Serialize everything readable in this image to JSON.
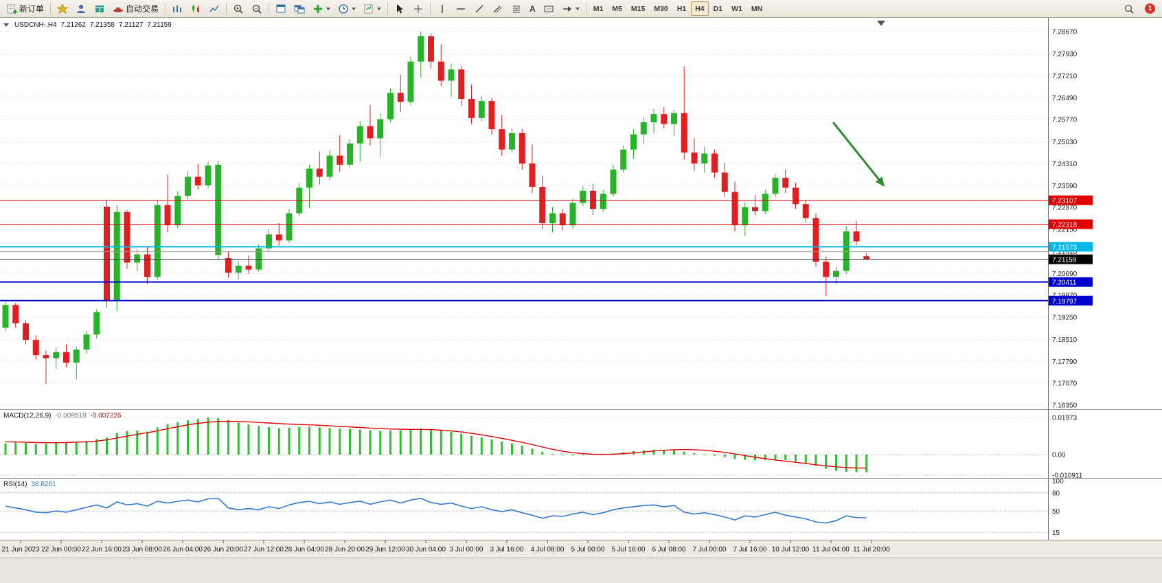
{
  "toolbar": {
    "new_order_label": "新订单",
    "autotrading_label": "自动交易",
    "text_tool_label": "A",
    "timeframes": [
      "M1",
      "M5",
      "M15",
      "M30",
      "H1",
      "H4",
      "D1",
      "W1",
      "MN"
    ],
    "active_timeframe": "H4",
    "notification_count": "1"
  },
  "chart": {
    "symbol_line": {
      "symbol": "USDCNH-,H4",
      "open": "7.21262",
      "high": "7.21358",
      "low": "7.21127",
      "close": "7.21159"
    }
  },
  "chart_data": {
    "type": "candlestick",
    "title": "USDCNH-,H4",
    "colors": {
      "up": "#28b428",
      "down": "#e02020"
    },
    "price_axis": {
      "labels": [
        "7.28670",
        "7.27930",
        "7.27210",
        "7.26490",
        "7.25770",
        "7.25030",
        "7.24310",
        "7.23590",
        "7.22870",
        "7.22150",
        "7.21410",
        "7.20690",
        "7.19970",
        "7.19250",
        "7.18510",
        "7.17790",
        "7.17070",
        "7.16350"
      ]
    },
    "time_labels": [
      "21 Jun 2023",
      "22 Jun 00:00",
      "22 Jun 16:00",
      "23 Jun 08:00",
      "26 Jun 04:00",
      "26 Jun 20:00",
      "27 Jun 12:00",
      "28 Jun 04:00",
      "28 Jun 20:00",
      "29 Jun 12:00",
      "30 Jun 04:00",
      "3 Jul 00:00",
      "3 Jul 16:00",
      "4 Jul 08:00",
      "5 Jul 00:00",
      "5 Jul 16:00",
      "6 Jul 08:00",
      "7 Jul 00:00",
      "7 Jul 16:00",
      "10 Jul 12:00",
      "11 Jul 04:00",
      "11 Jul 20:00"
    ],
    "candles": [
      [
        7.189,
        7.1975,
        7.188,
        7.1965
      ],
      [
        7.1965,
        7.1972,
        7.189,
        7.1905
      ],
      [
        7.1905,
        7.1915,
        7.1835,
        7.185
      ],
      [
        7.185,
        7.1865,
        7.1785,
        7.18
      ],
      [
        7.18,
        7.1815,
        7.1705,
        7.179
      ],
      [
        7.179,
        7.1825,
        7.1755,
        7.181
      ],
      [
        7.181,
        7.1835,
        7.176,
        7.1775
      ],
      [
        7.1775,
        7.1828,
        7.172,
        7.1818
      ],
      [
        7.1818,
        7.188,
        7.1805,
        7.1868
      ],
      [
        7.1868,
        7.195,
        7.1855,
        7.1942
      ],
      [
        7.229,
        7.2312,
        7.1958,
        7.1978
      ],
      [
        7.1978,
        7.2295,
        7.1945,
        7.2272
      ],
      [
        7.2272,
        7.2278,
        7.2085,
        7.2105
      ],
      [
        7.2105,
        7.215,
        7.2078,
        7.2132
      ],
      [
        7.2132,
        7.2158,
        7.2035,
        7.2058
      ],
      [
        7.2058,
        7.231,
        7.2048,
        7.2295
      ],
      [
        7.2295,
        7.2395,
        7.2205,
        7.2228
      ],
      [
        7.2228,
        7.234,
        7.2218,
        7.2325
      ],
      [
        7.2325,
        7.2405,
        7.2315,
        7.2388
      ],
      [
        7.2388,
        7.243,
        7.2345,
        7.236
      ],
      [
        7.236,
        7.2438,
        7.235,
        7.2425
      ],
      [
        7.213,
        7.244,
        7.2112,
        7.2428
      ],
      [
        7.212,
        7.2142,
        7.2055,
        7.2072
      ],
      [
        7.2072,
        7.2108,
        7.205,
        7.2095
      ],
      [
        7.2095,
        7.2128,
        7.2068,
        7.2082
      ],
      [
        7.2082,
        7.2165,
        7.2075,
        7.2152
      ],
      [
        7.2152,
        7.2215,
        7.2142,
        7.2198
      ],
      [
        7.2198,
        7.2235,
        7.2162,
        7.2178
      ],
      [
        7.2178,
        7.2282,
        7.2168,
        7.2268
      ],
      [
        7.2268,
        7.2368,
        7.2258,
        7.2352
      ],
      [
        7.2352,
        7.2428,
        7.2285,
        7.2415
      ],
      [
        7.2415,
        7.2472,
        7.2362,
        7.2388
      ],
      [
        7.2388,
        7.2475,
        7.2378,
        7.2458
      ],
      [
        7.2458,
        7.2525,
        7.2405,
        7.2428
      ],
      [
        7.2428,
        7.2512,
        7.2418,
        7.2498
      ],
      [
        7.2498,
        7.2572,
        7.2438,
        7.2555
      ],
      [
        7.2555,
        7.2625,
        7.2492,
        7.2515
      ],
      [
        7.2515,
        7.2598,
        7.2455,
        7.2578
      ],
      [
        7.2578,
        7.268,
        7.2568,
        7.2665
      ],
      [
        7.2665,
        7.2725,
        7.2602,
        7.2635
      ],
      [
        7.2635,
        7.2785,
        7.2625,
        7.2768
      ],
      [
        7.2768,
        7.2867,
        7.2715,
        7.2852
      ],
      [
        7.2852,
        7.2862,
        7.2745,
        7.2768
      ],
      [
        7.2768,
        7.2825,
        7.2688,
        7.2705
      ],
      [
        7.2705,
        7.2762,
        7.2652,
        7.2742
      ],
      [
        7.2742,
        7.2755,
        7.2622,
        7.2645
      ],
      [
        7.2645,
        7.2692,
        7.2562,
        7.2582
      ],
      [
        7.2582,
        7.2655,
        7.2572,
        7.2638
      ],
      [
        7.2638,
        7.2648,
        7.2528,
        7.2545
      ],
      [
        7.2545,
        7.2592,
        7.2458,
        7.2478
      ],
      [
        7.2478,
        7.2548,
        7.2468,
        7.2532
      ],
      [
        7.2532,
        7.2545,
        7.2412,
        7.2432
      ],
      [
        7.2432,
        7.2495,
        7.2335,
        7.2355
      ],
      [
        7.2355,
        7.2392,
        7.2215,
        7.2235
      ],
      [
        7.2235,
        7.2288,
        7.2205,
        7.2268
      ],
      [
        7.2268,
        7.2282,
        7.2212,
        7.2228
      ],
      [
        7.2228,
        7.2315,
        7.2218,
        7.2302
      ],
      [
        7.2302,
        7.2358,
        7.2292,
        7.2342
      ],
      [
        7.2342,
        7.2365,
        7.2262,
        7.2282
      ],
      [
        7.2282,
        7.2345,
        7.2272,
        7.2332
      ],
      [
        7.2332,
        7.2428,
        7.2322,
        7.2412
      ],
      [
        7.2412,
        7.2492,
        7.2402,
        7.2478
      ],
      [
        7.2478,
        7.2545,
        7.2448,
        7.2528
      ],
      [
        7.2528,
        7.2585,
        7.2498,
        7.2568
      ],
      [
        7.2568,
        7.2612,
        7.2532,
        7.2595
      ],
      [
        7.2595,
        7.2618,
        7.2548,
        7.2562
      ],
      [
        7.2562,
        7.2608,
        7.2522,
        7.2598
      ],
      [
        7.2598,
        7.2752,
        7.2445,
        7.2468
      ],
      [
        7.2468,
        7.2515,
        7.2408,
        7.2432
      ],
      [
        7.2432,
        7.2488,
        7.2402,
        7.2465
      ],
      [
        7.2465,
        7.2478,
        7.2385,
        7.2402
      ],
      [
        7.2402,
        7.2435,
        7.2322,
        7.2338
      ],
      [
        7.2338,
        7.2372,
        7.2208,
        7.2228
      ],
      [
        7.2228,
        7.2305,
        7.2192,
        7.2288
      ],
      [
        7.2288,
        7.2328,
        7.2262,
        7.2275
      ],
      [
        7.2275,
        7.2345,
        7.2265,
        7.2332
      ],
      [
        7.2332,
        7.2398,
        7.2322,
        7.2385
      ],
      [
        7.2385,
        7.2412,
        7.2335,
        7.2352
      ],
      [
        7.2352,
        7.2368,
        7.2282,
        7.2298
      ],
      [
        7.2298,
        7.2312,
        7.2238,
        7.2252
      ],
      [
        7.2252,
        7.2268,
        7.2092,
        7.2108
      ],
      [
        7.2108,
        7.2125,
        7.1995,
        7.2058
      ],
      [
        7.2058,
        7.2092,
        7.2035,
        7.2078
      ],
      [
        7.2078,
        7.2225,
        7.2068,
        7.2208
      ],
      [
        7.2208,
        7.2242,
        7.2162,
        7.2175
      ],
      [
        7.21262,
        7.21358,
        7.21127,
        7.21159
      ]
    ],
    "hlines": [
      {
        "price": 7.23107,
        "color": "#e00000",
        "width": 1,
        "label": "7.23107",
        "tag_bg": "#e00000"
      },
      {
        "price": 7.22318,
        "color": "#e00000",
        "width": 1,
        "label": "7.22318",
        "tag_bg": "#e00000"
      },
      {
        "price": 7.21573,
        "color": "#00b8e8",
        "width": 2,
        "label": "7.21573",
        "tag_bg": "#00b8e8"
      },
      {
        "price": 7.2141,
        "color": "#9a9a9a",
        "width": 1,
        "label": null,
        "tag_bg": null
      },
      {
        "price": 7.21159,
        "color": "#3c3c3c",
        "width": 1,
        "label": "7.21159",
        "tag_bg": "#000000"
      },
      {
        "price": 7.20411,
        "color": "#0000cc",
        "width": 2,
        "label": "7.20411",
        "tag_bg": "#0000cc"
      },
      {
        "price": 7.19797,
        "color": "#0000cc",
        "width": 2,
        "label": "7.19797",
        "tag_bg": "#0000cc"
      }
    ],
    "arrow": {
      "from": [
        81.7,
        7.2568
      ],
      "to": [
        86.8,
        7.2355
      ],
      "color": "#2e8b2e"
    },
    "macd": {
      "name": "MACD(12,26,9)",
      "value_main": "-0.009518",
      "value_signal": "-0.007226",
      "axis_labels": [
        "0.01973",
        "0.00",
        "-0.010911"
      ],
      "axis_values": [
        0.01973,
        0,
        -0.010911
      ],
      "histogram": [
        0.006,
        0.0065,
        0.0062,
        0.0056,
        0.0058,
        0.0062,
        0.006,
        0.0065,
        0.0072,
        0.0082,
        0.009,
        0.0115,
        0.0125,
        0.0128,
        0.0122,
        0.0145,
        0.0162,
        0.0172,
        0.0182,
        0.019,
        0.0197,
        0.0193,
        0.0183,
        0.017,
        0.016,
        0.0152,
        0.0146,
        0.0141,
        0.0143,
        0.0146,
        0.0148,
        0.0145,
        0.0141,
        0.0138,
        0.0136,
        0.0133,
        0.0129,
        0.0126,
        0.0128,
        0.013,
        0.0135,
        0.014,
        0.0137,
        0.0129,
        0.0121,
        0.0111,
        0.01,
        0.0091,
        0.0081,
        0.0069,
        0.0059,
        0.0047,
        0.0031,
        0.0014,
        0.0004,
        -0.0003,
        -0.0005,
        0.0,
        0.0002,
        0.0001,
        0.0006,
        0.0012,
        0.0018,
        0.0023,
        0.0026,
        0.0025,
        0.0024,
        0.0016,
        0.0007,
        0.0,
        -0.0006,
        -0.0013,
        -0.0023,
        -0.0028,
        -0.003,
        -0.0028,
        -0.0026,
        -0.0029,
        -0.0036,
        -0.0046,
        -0.0061,
        -0.0076,
        -0.0086,
        -0.0091,
        -0.0094,
        -0.0095
      ],
      "signal": [
        0.0068,
        0.0067,
        0.0066,
        0.0064,
        0.0063,
        0.0063,
        0.0064,
        0.0066,
        0.0068,
        0.0072,
        0.0078,
        0.0088,
        0.0098,
        0.0108,
        0.0116,
        0.0126,
        0.0138,
        0.0148,
        0.0158,
        0.0166,
        0.0172,
        0.0176,
        0.0177,
        0.0176,
        0.0174,
        0.0171,
        0.0168,
        0.0165,
        0.0162,
        0.016,
        0.0158,
        0.0156,
        0.0153,
        0.015,
        0.0147,
        0.0144,
        0.0141,
        0.0138,
        0.0136,
        0.0135,
        0.0134,
        0.0134,
        0.0133,
        0.013,
        0.0126,
        0.012,
        0.0113,
        0.0105,
        0.0096,
        0.0086,
        0.0076,
        0.0065,
        0.0053,
        0.004,
        0.0028,
        0.0018,
        0.001,
        0.0005,
        0.0002,
        0.0001,
        0.0002,
        0.0005,
        0.0009,
        0.0014,
        0.0019,
        0.0023,
        0.0026,
        0.0027,
        0.0026,
        0.0023,
        0.0018,
        0.0012,
        0.0004,
        -0.0005,
        -0.0014,
        -0.0022,
        -0.0029,
        -0.0035,
        -0.0041,
        -0.0047,
        -0.0054,
        -0.006,
        -0.0065,
        -0.0069,
        -0.0071,
        -0.0072
      ]
    },
    "rsi": {
      "name": "RSI(14)",
      "value": "38.8261",
      "levels": [
        80,
        50,
        15
      ],
      "axis_labels": [
        "100",
        "80",
        "50",
        "15"
      ],
      "axis_values": [
        100,
        80,
        50,
        15
      ],
      "values": [
        58,
        55,
        52,
        48,
        47,
        50,
        48,
        52,
        56,
        60,
        55,
        65,
        60,
        62,
        58,
        66,
        63,
        66,
        68,
        65,
        70,
        71,
        55,
        52,
        54,
        52,
        57,
        54,
        60,
        64,
        66,
        62,
        65,
        61,
        64,
        66,
        61,
        65,
        68,
        63,
        68,
        71,
        64,
        61,
        63,
        58,
        54,
        57,
        52,
        49,
        52,
        47,
        43,
        38,
        42,
        41,
        45,
        48,
        44,
        47,
        52,
        55,
        57,
        59,
        60,
        57,
        59,
        48,
        45,
        47,
        44,
        40,
        35,
        42,
        40,
        44,
        48,
        43,
        40,
        37,
        32,
        30,
        34,
        42,
        39,
        38.83
      ]
    }
  }
}
